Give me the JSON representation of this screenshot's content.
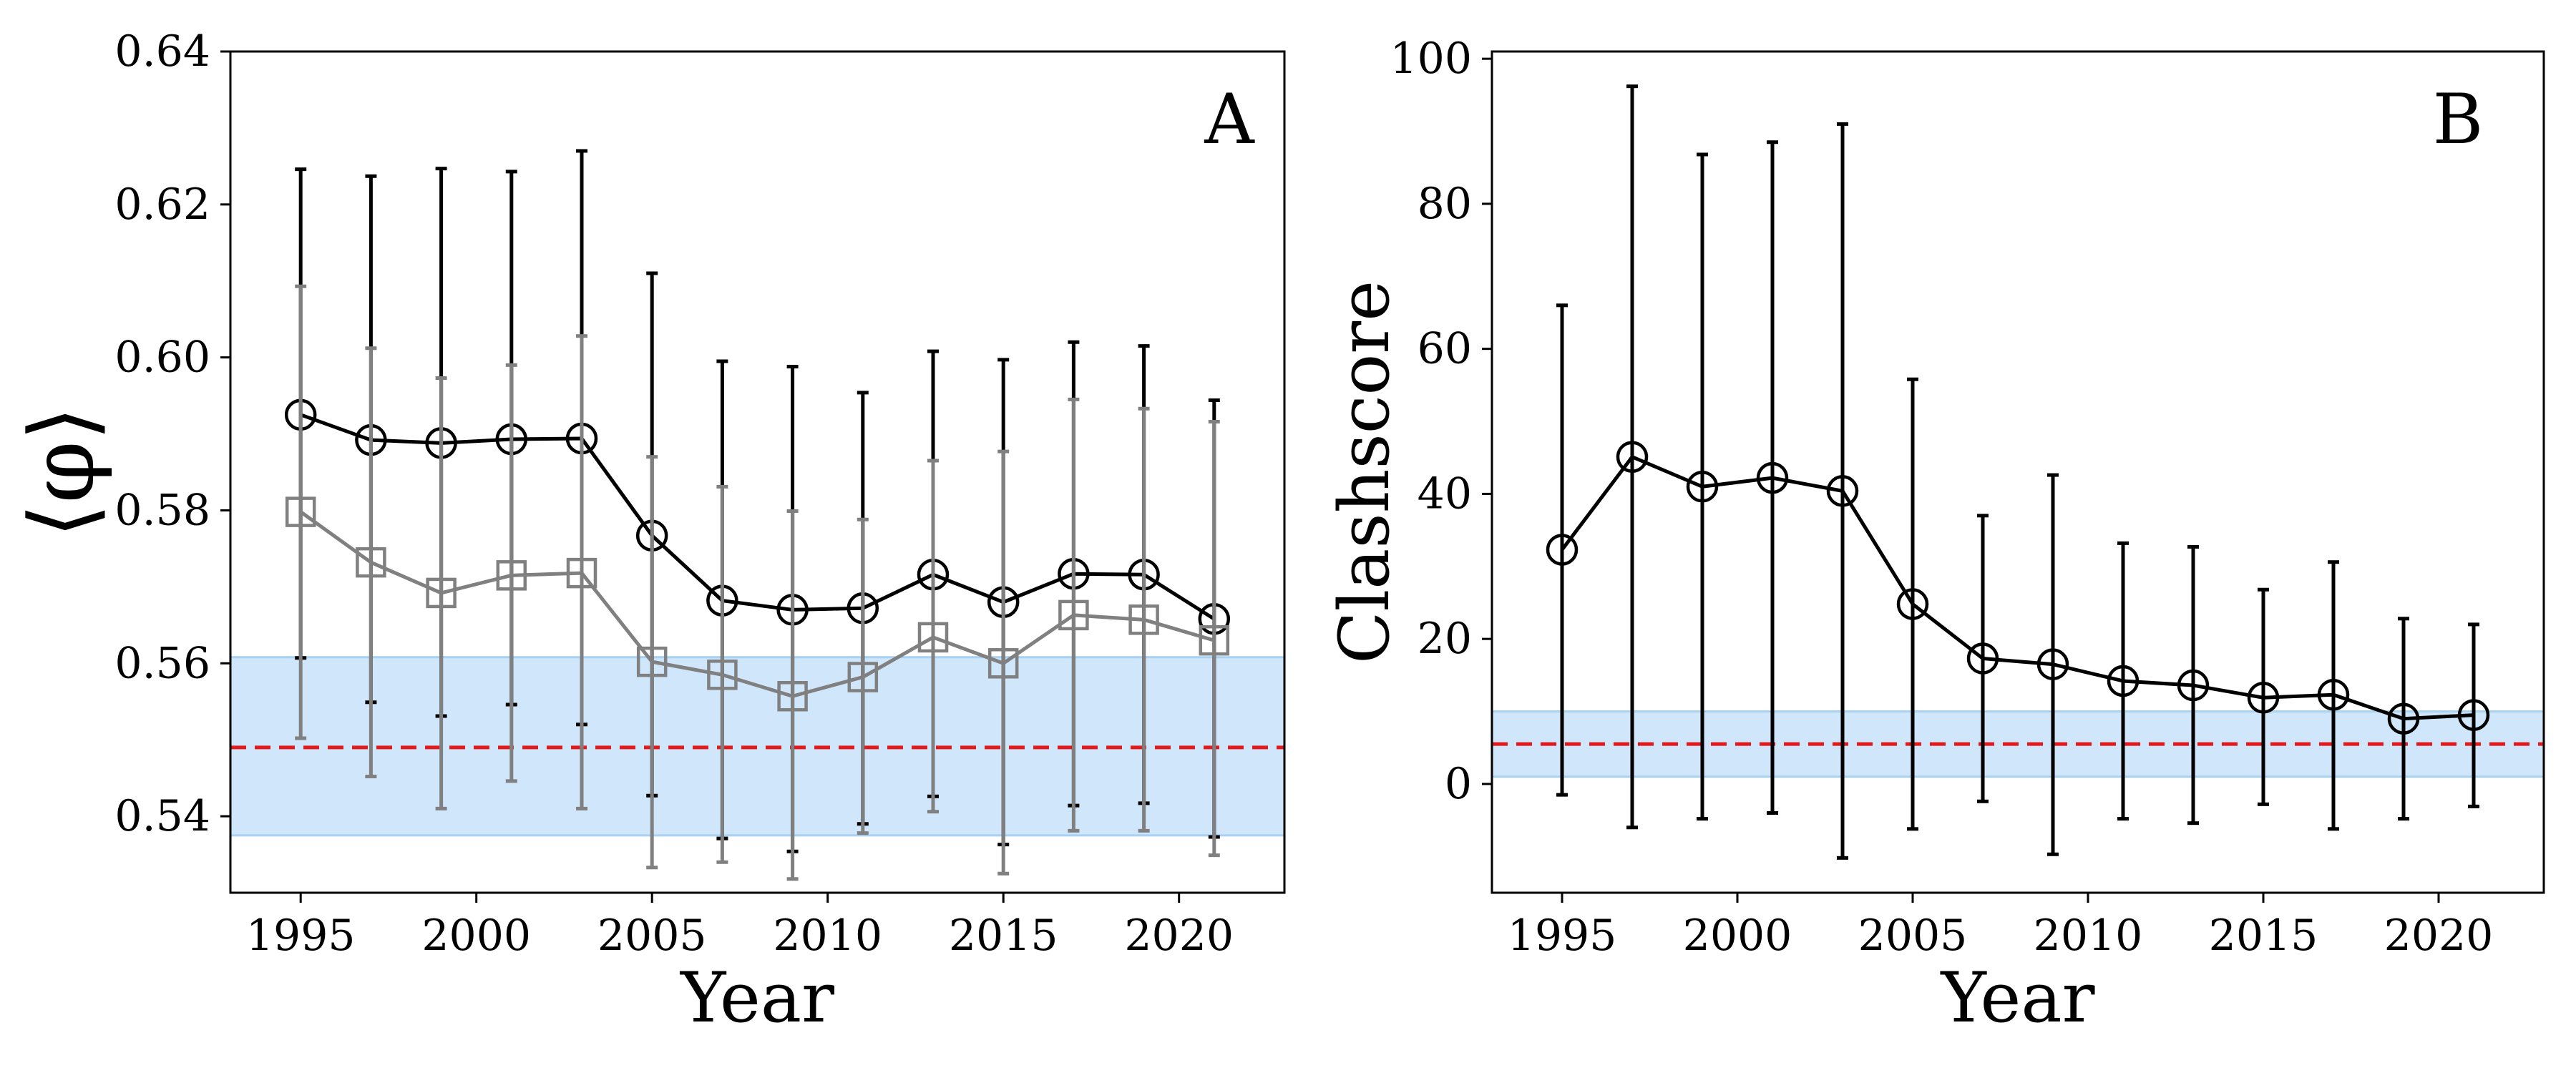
{
  "colors": {
    "series_black": "#000000",
    "series_gray": "#808080",
    "reference_line": "#e31a1c",
    "reference_band": "#cfe6fb",
    "reference_band_edge": "#a8d2f4"
  },
  "chart_data": [
    {
      "type": "line",
      "panel_label": "A",
      "xlabel": "Year",
      "ylabel": "⟨φ⟩",
      "xlim": [
        1993,
        2023
      ],
      "ylim": [
        0.53,
        0.64
      ],
      "xticks": [
        1995,
        2000,
        2005,
        2010,
        2015,
        2020
      ],
      "xtick_labels": [
        "1995",
        "2000",
        "2005",
        "2010",
        "2015",
        "2020"
      ],
      "yticks": [
        0.54,
        0.56,
        0.58,
        0.6,
        0.62,
        0.64
      ],
      "ytick_labels": [
        "0.54",
        "0.56",
        "0.58",
        "0.60",
        "0.62",
        "0.64"
      ],
      "grid": false,
      "reference": {
        "line": 0.549,
        "band": [
          0.5375,
          0.5608
        ]
      },
      "x": [
        1995,
        1997,
        1999,
        2001,
        2003,
        2005,
        2007,
        2009,
        2011,
        2013,
        2015,
        2017,
        2019,
        2021
      ],
      "series": [
        {
          "name": "black circles",
          "marker": "circle",
          "color": "#000000",
          "values": [
            0.5925,
            0.5892,
            0.5888,
            0.5893,
            0.5894,
            0.5767,
            0.5682,
            0.567,
            0.5672,
            0.5716,
            0.568,
            0.5717,
            0.5716,
            0.5658
          ],
          "err_low": [
            0.5607,
            0.5549,
            0.5531,
            0.5546,
            0.552,
            0.5427,
            0.5371,
            0.5354,
            0.539,
            0.5426,
            0.5363,
            0.5414,
            0.5417,
            0.5373
          ],
          "err_high": [
            0.6246,
            0.6237,
            0.6247,
            0.6243,
            0.627,
            0.611,
            0.5995,
            0.5988,
            0.5954,
            0.6008,
            0.5997,
            0.602,
            0.6015,
            0.5944
          ]
        },
        {
          "name": "gray squares",
          "marker": "square",
          "color": "#808080",
          "values": [
            0.5798,
            0.5732,
            0.5692,
            0.5715,
            0.5718,
            0.5602,
            0.5585,
            0.5557,
            0.5582,
            0.5634,
            0.56,
            0.5663,
            0.5657,
            0.563
          ],
          "err_low": [
            0.5502,
            0.5452,
            0.541,
            0.5446,
            0.541,
            0.5333,
            0.534,
            0.5318,
            0.5378,
            0.5406,
            0.5325,
            0.5381,
            0.5381,
            0.5349
          ],
          "err_high": [
            0.6093,
            0.6012,
            0.5973,
            0.599,
            0.6028,
            0.587,
            0.5831,
            0.5799,
            0.5788,
            0.5865,
            0.5877,
            0.5945,
            0.5933,
            0.5916
          ]
        }
      ]
    },
    {
      "type": "line",
      "panel_label": "B",
      "xlabel": "Year",
      "ylabel": "Clashscore",
      "xlim": [
        1993,
        2023
      ],
      "ylim": [
        -15,
        101
      ],
      "xticks": [
        1995,
        2000,
        2005,
        2010,
        2015,
        2020
      ],
      "xtick_labels": [
        "1995",
        "2000",
        "2005",
        "2010",
        "2015",
        "2020"
      ],
      "yticks": [
        0,
        20,
        40,
        60,
        80,
        100
      ],
      "ytick_labels": [
        "0",
        "20",
        "40",
        "60",
        "80",
        "100"
      ],
      "grid": false,
      "reference": {
        "line": 5.5,
        "band": [
          1.0,
          10.0
        ]
      },
      "x": [
        1995,
        1997,
        1999,
        2001,
        2003,
        2005,
        2007,
        2009,
        2011,
        2013,
        2015,
        2017,
        2019,
        2021
      ],
      "series": [
        {
          "name": "Clashscore",
          "marker": "circle",
          "color": "#000000",
          "values": [
            32.3,
            45.1,
            41.0,
            42.2,
            40.4,
            24.8,
            17.3,
            16.5,
            14.2,
            13.6,
            11.9,
            12.3,
            9.0,
            9.5
          ],
          "err_low": [
            -1.5,
            -6.0,
            -4.8,
            -4.0,
            -10.2,
            -6.2,
            -2.4,
            -9.7,
            -4.8,
            -5.4,
            -2.8,
            -6.2,
            -4.8,
            -3.1
          ],
          "err_high": [
            66.0,
            96.2,
            86.8,
            88.5,
            91.0,
            55.8,
            37.0,
            42.6,
            33.2,
            32.7,
            26.8,
            30.6,
            22.8,
            22.0
          ]
        }
      ]
    }
  ]
}
